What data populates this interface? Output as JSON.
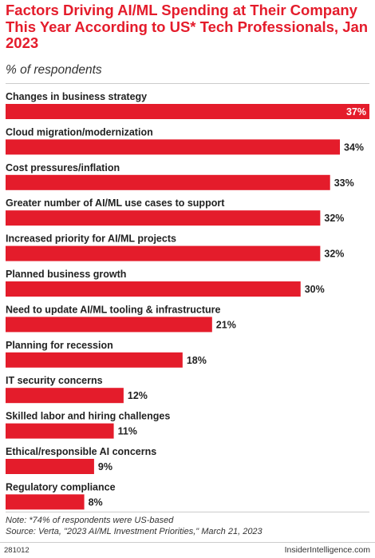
{
  "header": {
    "title": "Factors Driving AI/ML Spending at Their Company This Year According to US* Tech Professionals, Jan 2023",
    "subtitle": "% of respondents"
  },
  "chart_data": {
    "type": "bar",
    "orientation": "horizontal",
    "categories": [
      "Changes in business strategy",
      "Cloud migration/modernization",
      "Cost pressures/inflation",
      "Greater number of AI/ML use cases to support",
      "Increased priority for AI/ML projects",
      "Planned business growth",
      "Need to update AI/ML tooling & infrastructure",
      "Planning for recession",
      "IT security concerns",
      "Skilled labor and hiring challenges",
      "Ethical/responsible AI concerns",
      "Regulatory compliance"
    ],
    "values": [
      37,
      34,
      33,
      32,
      32,
      30,
      21,
      18,
      12,
      11,
      9,
      8
    ],
    "value_labels": [
      "37%",
      "34%",
      "33%",
      "32%",
      "32%",
      "30%",
      "21%",
      "18%",
      "12%",
      "11%",
      "9%",
      "8%"
    ],
    "xlim": [
      0,
      37
    ],
    "bar_color": "#e41c2b",
    "grid": false,
    "legend": "none"
  },
  "footer": {
    "note": "Note: *74% of respondents were US-based",
    "source": "Source: Verta, \"2023 AI/ML Investment Priorities,\" March 21, 2023",
    "chart_id": "281012",
    "brand": "InsiderIntelligence.com"
  }
}
